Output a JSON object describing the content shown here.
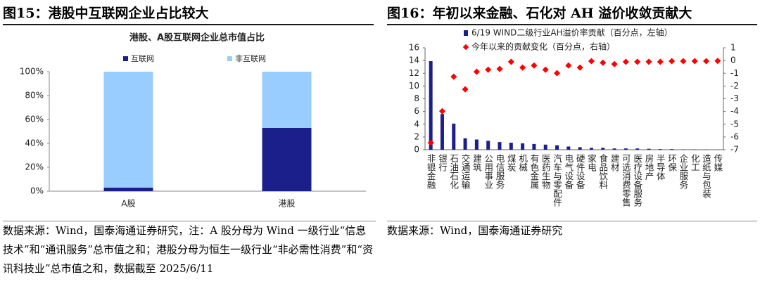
{
  "chart_data": [
    {
      "type": "bar",
      "stacked": true,
      "heading": "图15：港股中互联网企业占比较大",
      "title": "港股、A股互联网企业总市值占比",
      "categories": [
        "A股",
        "港股"
      ],
      "series": [
        {
          "name": "互联网",
          "color": "#1a1f8c",
          "values": [
            3,
            53
          ]
        },
        {
          "name": "非互联网",
          "color": "#99ccff",
          "values": [
            97,
            47
          ]
        }
      ],
      "ylim": [
        0,
        100
      ],
      "yticks": [
        {
          "value": 0,
          "label": "0%"
        },
        {
          "value": 20,
          "label": "20%"
        },
        {
          "value": 40,
          "label": "40%"
        },
        {
          "value": 60,
          "label": "60%"
        },
        {
          "value": 80,
          "label": "80%"
        },
        {
          "value": 100,
          "label": "100%"
        }
      ],
      "source": "数据来源：Wind，国泰海通证券研究，注：A 股分母为 Wind 一级行业“信息技术”和“通讯服务”总市值之和；港股分母为恒生一级行业“非必需性消费”和“资讯科技业”总市值之和，数据截至 2025/6/11"
    },
    {
      "type": "bar",
      "heading": "图16：年初以来金融、石化对 AH 溢价收敛贡献大",
      "categories": [
        "非银金融",
        "银行",
        "石油石化",
        "交通运输",
        "建筑",
        "公用事业",
        "电信服务",
        "煤炭",
        "机械",
        "有色金属",
        "医药生物",
        "汽车与零配件",
        "电气设备",
        "硬件设备",
        "家电",
        "食品饮料",
        "建材",
        "可选消费零售",
        "医疗设备服务",
        "房地产",
        "半导体",
        "环保",
        "企业服务",
        "化工",
        "造纸与包装",
        "传媒"
      ],
      "series": [
        {
          "name": "6/19 WIND二级行业AH溢价率贡献（百分点，左轴）",
          "color": "#1a1f8c",
          "values": [
            13.9,
            5.6,
            4.1,
            1.8,
            1.6,
            1.4,
            1.2,
            1.1,
            1.0,
            0.9,
            0.8,
            0.7,
            0.5,
            0.4,
            0.3,
            0.3,
            0.2,
            0.2,
            0.2,
            0.15,
            0.1,
            0.1,
            0.05,
            0.05,
            0.03,
            0.02
          ]
        },
        {
          "name": "今年以来的贡献变化（百分点，右轴）",
          "color": "#ff0000",
          "type": "scatter",
          "axis": "y2",
          "values": [
            -6.45,
            -3.98,
            -1.27,
            -2.26,
            -0.88,
            -0.72,
            -0.66,
            -0.1,
            -0.55,
            -0.39,
            -0.72,
            -0.99,
            -0.39,
            -0.55,
            -0.05,
            -0.17,
            -0.28,
            -0.1,
            -0.1,
            -0.1,
            -0.1,
            -0.05,
            -0.05,
            -0.05,
            -0.05,
            -0.03
          ]
        }
      ],
      "ylim": [
        0,
        16
      ],
      "yticks": [
        0,
        2,
        4,
        6,
        8,
        10,
        12,
        14,
        16
      ],
      "y2lim": [
        -7,
        1
      ],
      "y2ticks": [
        -7,
        -6,
        -5,
        -4,
        -3,
        -2,
        -1,
        0,
        1
      ],
      "source": "数据来源：Wind，国泰海通证券研究"
    }
  ]
}
